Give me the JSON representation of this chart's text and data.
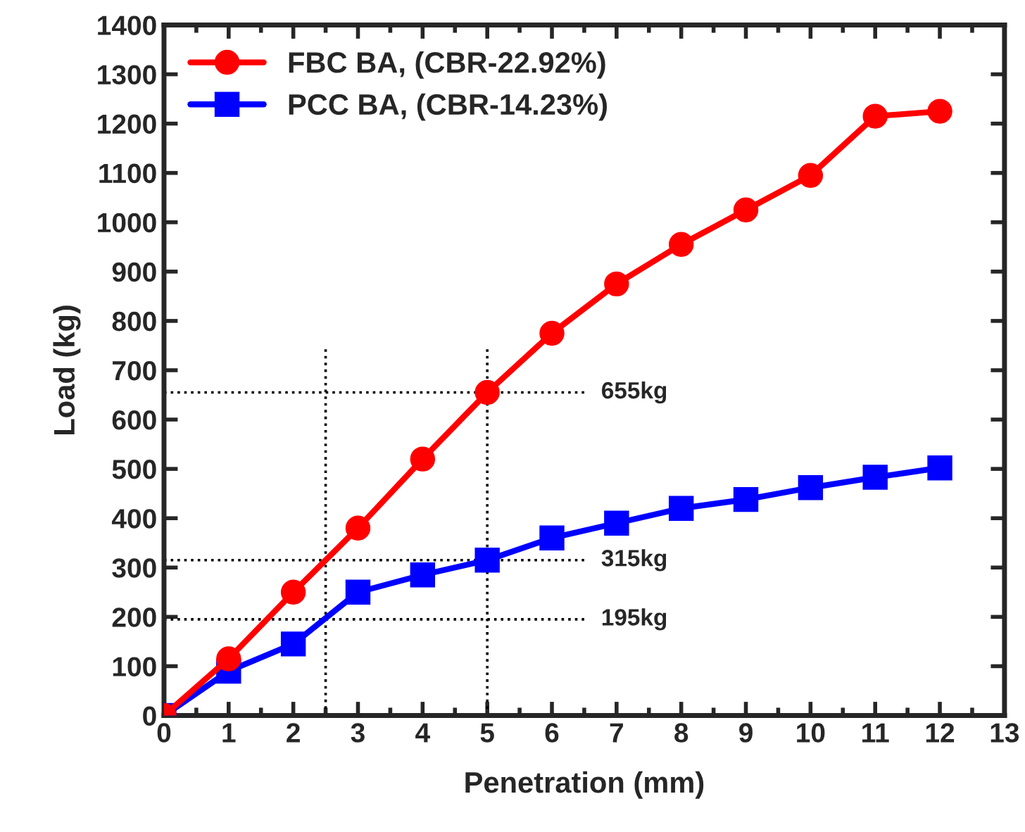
{
  "chart_data": {
    "type": "line",
    "xlabel": "Penetration (mm)",
    "ylabel": "Load (kg)",
    "x": [
      0,
      1,
      2,
      3,
      4,
      5,
      6,
      7,
      8,
      9,
      10,
      11,
      12
    ],
    "series": [
      {
        "name": "FBC BA, (CBR-22.92%)",
        "color": "#ff0000",
        "marker": "circle",
        "values": [
          0,
          115,
          250,
          380,
          520,
          655,
          775,
          875,
          955,
          1025,
          1095,
          1215,
          1225
        ]
      },
      {
        "name": "PCC BA, (CBR-14.23%)",
        "color": "#0000ff",
        "marker": "square",
        "values": [
          0,
          90,
          145,
          250,
          285,
          315,
          360,
          390,
          420,
          438,
          462,
          483,
          502
        ]
      }
    ],
    "xlim": [
      0,
      13
    ],
    "xticks": [
      0,
      1,
      2,
      3,
      4,
      5,
      6,
      7,
      8,
      9,
      10,
      11,
      12,
      13
    ],
    "ylim": [
      0,
      1400
    ],
    "yticks": [
      0,
      100,
      200,
      300,
      400,
      500,
      600,
      700,
      800,
      900,
      1000,
      1100,
      1200,
      1300,
      1400
    ],
    "ref_lines": [
      {
        "axis": "y",
        "value": 655,
        "label": "655kg",
        "line_style": "dotted",
        "color": "#000000"
      },
      {
        "axis": "y",
        "value": 315,
        "label": "315kg",
        "line_style": "dotted",
        "color": "#000000"
      },
      {
        "axis": "y",
        "value": 195,
        "label": "195kg",
        "line_style": "dotted",
        "color": "#000000"
      },
      {
        "axis": "x",
        "value": 5,
        "line_style": "dotted",
        "color": "#000000"
      },
      {
        "axis": "x",
        "value": 2.5,
        "line_style": "dotted",
        "color": "#000000"
      }
    ],
    "legend": "top left",
    "grid": false,
    "line_style": "solid"
  }
}
